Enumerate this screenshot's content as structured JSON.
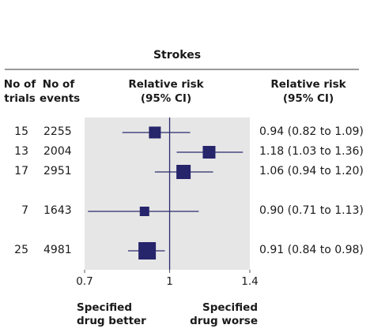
{
  "title": "Strokes",
  "headers": {
    "trials": [
      "No of",
      "trials"
    ],
    "events": [
      "No of",
      "events"
    ],
    "rr_plot": [
      "Relative risk",
      "(95% CI)"
    ],
    "rr_text": [
      "Relative risk",
      "(95% CI)"
    ]
  },
  "footer": {
    "left": [
      "Specified",
      "drug better"
    ],
    "right": [
      "Specified",
      "drug worse"
    ]
  },
  "chart_data": {
    "type": "forest",
    "x_scale": "log",
    "xlim": [
      0.7,
      1.4
    ],
    "ticks": [
      "0.7",
      "1",
      "1.4"
    ],
    "tick_values": [
      0.7,
      1.0,
      1.4
    ],
    "reference_line": 1.0,
    "rows": [
      {
        "trials": "15",
        "events": "2255",
        "rr": 0.94,
        "lo": 0.82,
        "hi": 1.09,
        "label": "0.94 (0.82 to 1.09)"
      },
      {
        "trials": "13",
        "events": "2004",
        "rr": 1.18,
        "lo": 1.03,
        "hi": 1.36,
        "label": "1.18 (1.03 to 1.36)"
      },
      {
        "trials": "17",
        "events": "2951",
        "rr": 1.06,
        "lo": 0.94,
        "hi": 1.2,
        "label": "1.06 (0.94 to 1.20)"
      },
      {
        "trials": "7",
        "events": "1643",
        "rr": 0.9,
        "lo": 0.71,
        "hi": 1.13,
        "label": "0.90 (0.71 to 1.13)"
      },
      {
        "trials": "25",
        "events": "4981",
        "rr": 0.91,
        "lo": 0.84,
        "hi": 0.98,
        "label": "0.91 (0.84 to 0.98)"
      }
    ]
  }
}
